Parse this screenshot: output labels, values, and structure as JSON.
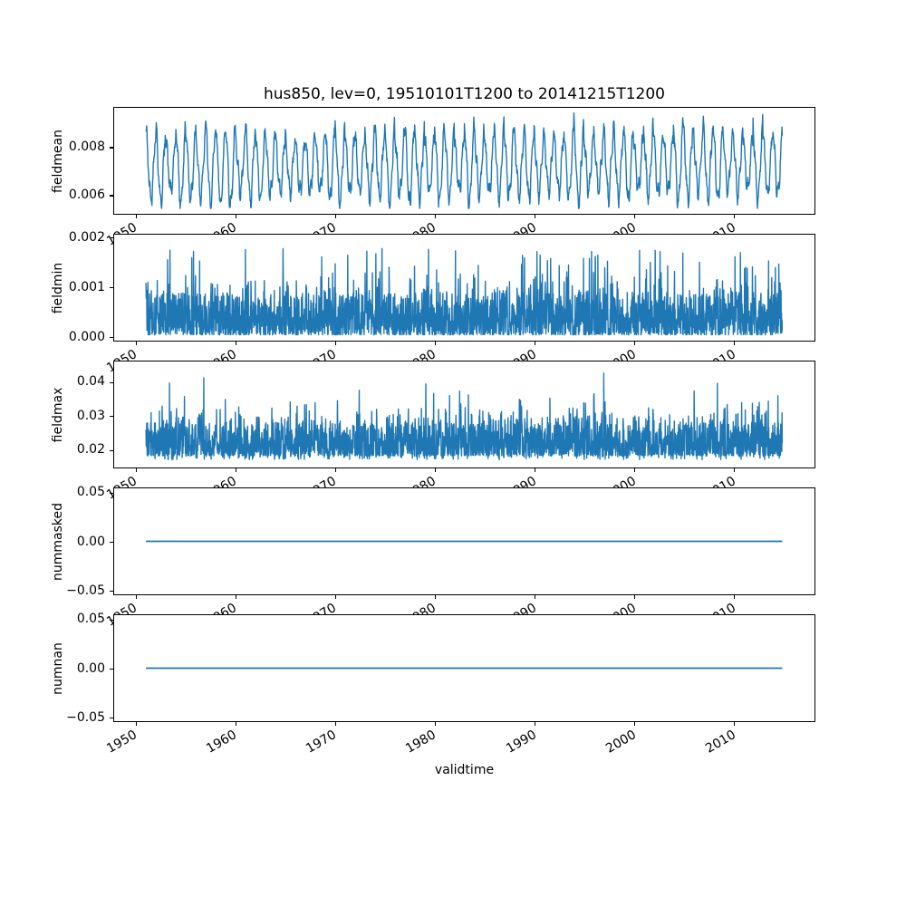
{
  "figure": {
    "title": "hus850, lev=0, 19510101T1200 to 20141215T1200",
    "xlabel": "validtime",
    "line_color": "#1f77b4",
    "spine_color": "#000000",
    "background": "#ffffff"
  },
  "x_axis": {
    "ticks": [
      1950,
      1960,
      1970,
      1980,
      1990,
      2000,
      2010
    ],
    "tick_labels": [
      "1950",
      "1960",
      "1970",
      "1980",
      "1990",
      "2000",
      "2010"
    ],
    "tick_rotation_deg": 30,
    "xlim": [
      1947.8,
      2018.2
    ],
    "data_range": [
      1951.0,
      2014.96
    ]
  },
  "chart_data": [
    {
      "type": "line",
      "ylabel": "fieldmean",
      "ylim": [
        0.00517,
        0.00966
      ],
      "ytick_values": [
        0.006,
        0.008
      ],
      "ytick_labels": [
        "0.006",
        "0.008"
      ],
      "series_summary": {
        "kind": "seasonal",
        "mean": 0.0072,
        "amp_min": 0.0011,
        "amp_max": 0.0017,
        "harmonic": 0.0003,
        "noise": 0.00022,
        "trend": 0.00015,
        "clip": [
          0.0054,
          0.0096
        ],
        "description": "annual oscillation ~0.0055 to ~0.0095"
      }
    },
    {
      "type": "line",
      "ylabel": "fieldmin",
      "ylim": [
        -0.0001,
        0.00207
      ],
      "ytick_values": [
        0.0,
        0.001,
        0.002
      ],
      "ytick_labels": [
        "0.000",
        "0.001",
        "0.002"
      ],
      "series_summary": {
        "kind": "spiky",
        "base": 2e-05,
        "band": 0.00085,
        "pow": 2.2,
        "mid_prob": 0.3,
        "mid": 0.0004,
        "spike_prob": 0.05,
        "spike_lo": 0.0007,
        "spike_hi": 0.0018,
        "clip": [
          2e-05,
          0.00195
        ],
        "description": "dense band near 0-0.001 with spikes to ~0.002"
      }
    },
    {
      "type": "line",
      "ylabel": "fieldmax",
      "ylim": [
        0.0145,
        0.0462
      ],
      "ytick_values": [
        0.02,
        0.03,
        0.04
      ],
      "ytick_labels": [
        "0.02",
        "0.03",
        "0.04"
      ],
      "series_summary": {
        "kind": "spiky-band",
        "base": 0.018,
        "band": 0.01,
        "pow": 1.8,
        "mid_prob": 0.35,
        "mid": 0.006,
        "spike_prob": 0.05,
        "spike": 0.009,
        "dip_prob": 0.1,
        "dip_base": 0.0168,
        "dip_range": 0.002,
        "clip": [
          0.0165,
          0.0445
        ],
        "description": "dense band ~0.018-0.034 with spikes to ~0.044"
      }
    },
    {
      "type": "line",
      "ylabel": "nummasked",
      "ylim": [
        -0.055,
        0.055
      ],
      "ytick_values": [
        -0.05,
        0.0,
        0.05
      ],
      "ytick_labels": [
        "−0.05",
        "0.00",
        "0.05"
      ],
      "series_summary": {
        "kind": "constant",
        "value": 0.0,
        "description": "flat line at 0"
      }
    },
    {
      "type": "line",
      "ylabel": "numnan",
      "ylim": [
        -0.055,
        0.055
      ],
      "ytick_values": [
        -0.05,
        0.0,
        0.05
      ],
      "ytick_labels": [
        "−0.05",
        "0.00",
        "0.05"
      ],
      "series_summary": {
        "kind": "constant",
        "value": 0.0,
        "description": "flat line at 0"
      }
    }
  ]
}
